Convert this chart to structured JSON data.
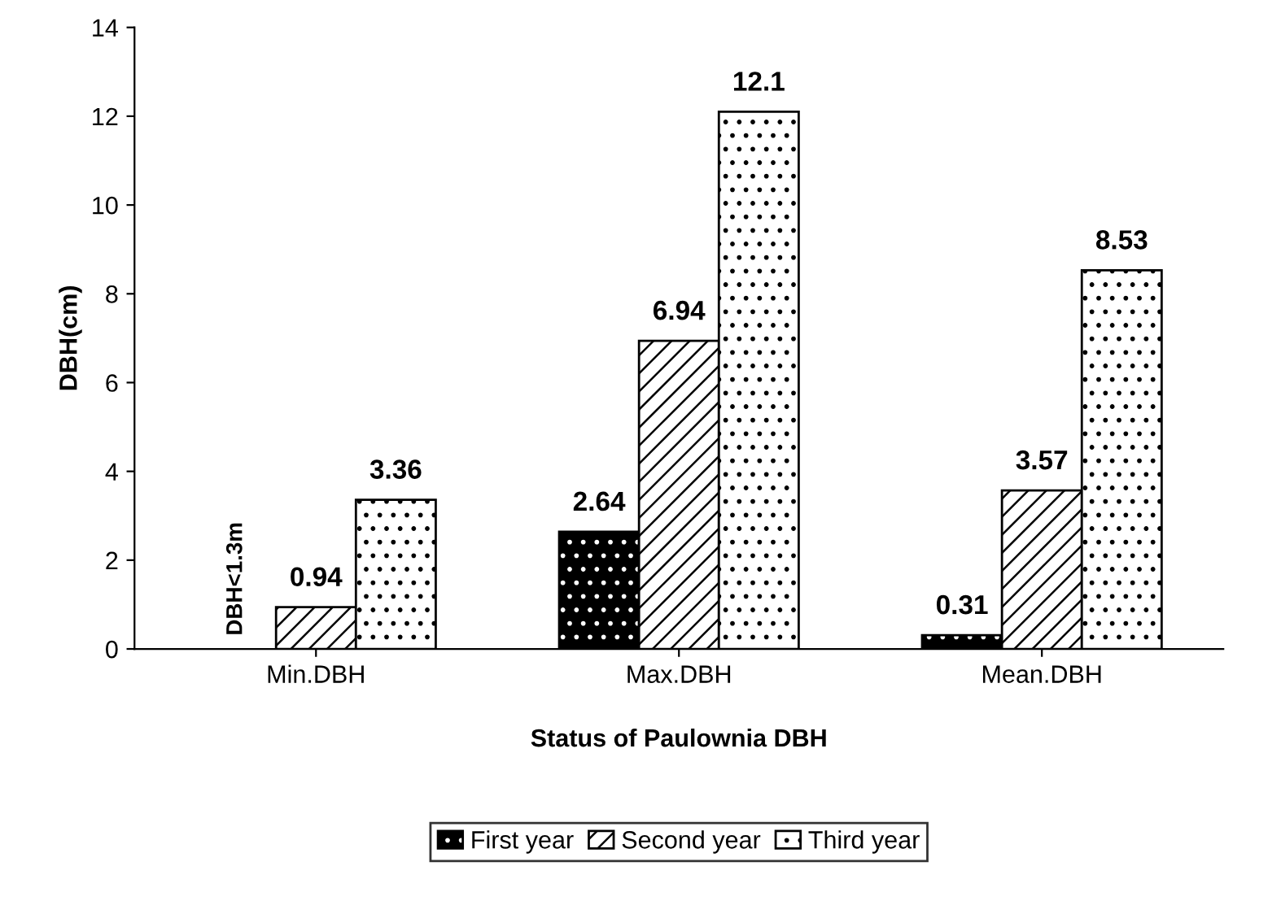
{
  "chart_data": {
    "type": "bar",
    "xlabel": "Status of Paulownia DBH",
    "ylabel": "DBH(cm)",
    "categories": [
      "Min.DBH",
      "Max.DBH",
      "Mean.DBH"
    ],
    "series": [
      {
        "name": "First year",
        "color": "#000000",
        "values": [
          null,
          2.64,
          0.31
        ]
      },
      {
        "name": "Second year",
        "color": "#ffffff",
        "values": [
          0.94,
          6.94,
          3.57
        ]
      },
      {
        "name": "Third year",
        "color": "#ffffff",
        "values": [
          3.36,
          12.1,
          8.53
        ]
      }
    ],
    "ylim": [
      0,
      14
    ],
    "yticks": [
      0,
      2,
      4,
      6,
      8,
      10,
      12,
      14
    ],
    "grid": false,
    "legend": "bottom",
    "data_labels": true,
    "annotations": [
      "DBH<1.3m"
    ]
  }
}
